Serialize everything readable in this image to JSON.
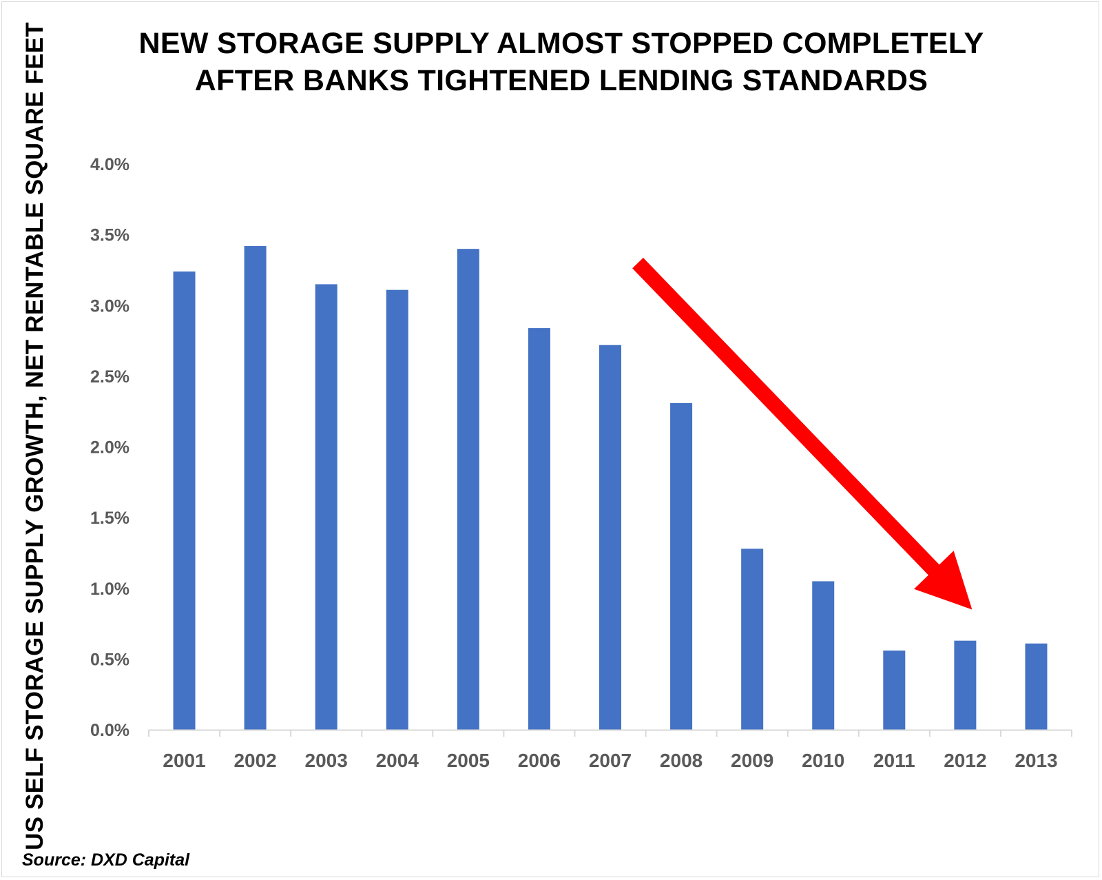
{
  "chart_data": {
    "type": "bar",
    "title": "NEW STORAGE SUPPLY ALMOST STOPPED COMPLETELY AFTER BANKS TIGHTENED LENDING STANDARDS",
    "title_lines": [
      "NEW STORAGE SUPPLY ALMOST STOPPED COMPLETELY",
      "AFTER BANKS TIGHTENED LENDING STANDARDS"
    ],
    "xlabel": "",
    "ylabel": "US SELF STORAGE SUPPLY GROWTH, NET RENTABLE SQUARE FEET",
    "categories": [
      "2001",
      "2002",
      "2003",
      "2004",
      "2005",
      "2006",
      "2007",
      "2008",
      "2009",
      "2010",
      "2011",
      "2012",
      "2013"
    ],
    "values": [
      3.24,
      3.42,
      3.15,
      3.11,
      3.4,
      2.84,
      2.72,
      2.31,
      1.28,
      1.05,
      0.56,
      0.63,
      0.61
    ],
    "value_unit": "%",
    "ylim": [
      0,
      4.0
    ],
    "yticks": [
      0.0,
      0.5,
      1.0,
      1.5,
      2.0,
      2.5,
      3.0,
      3.5,
      4.0
    ],
    "ytick_labels": [
      "0.0%",
      "0.5%",
      "1.0%",
      "1.5%",
      "2.0%",
      "2.5%",
      "3.0%",
      "3.5%",
      "4.0%"
    ],
    "grid": false,
    "legend": "none",
    "bar_color": "#4472C4",
    "annotation": {
      "type": "arrow",
      "color": "#FF0000",
      "direction": "down-right",
      "start": {
        "category": "2007",
        "value": 3.3
      },
      "end": {
        "category": "2012",
        "value": 0.85
      }
    },
    "source": "Source: DXD Capital"
  }
}
